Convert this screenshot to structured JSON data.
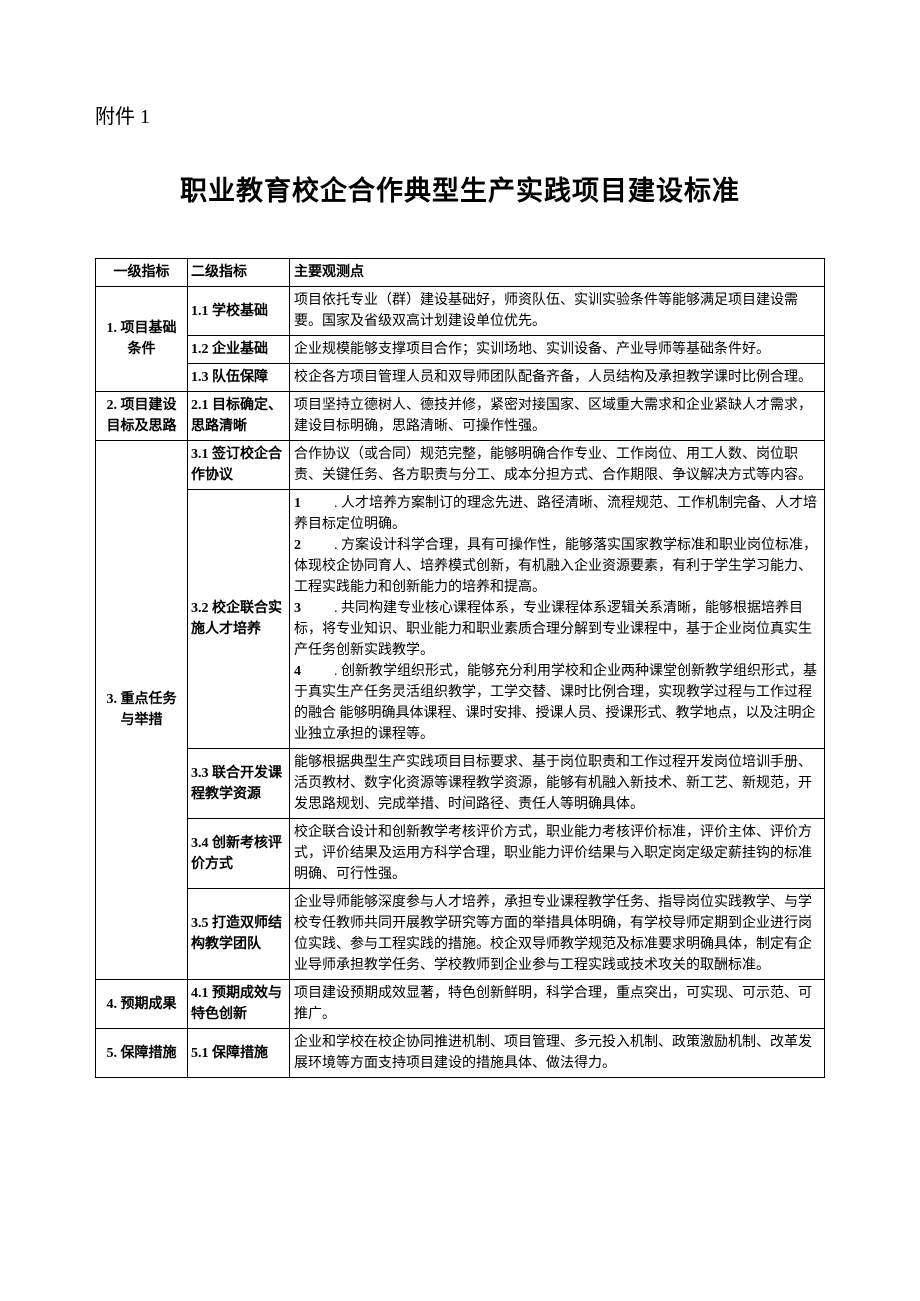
{
  "attachment_label": "附件 1",
  "title": "职业教育校企合作典型生产实践项目建设标准",
  "headers": {
    "col1": "一级指标",
    "col2": "二级指标",
    "col3": "主要观测点"
  },
  "rows": [
    {
      "l1": "1. 项目基础条件",
      "l1_rowspan": 3,
      "l2": "1.1 学校基础",
      "l3": "项目依托专业（群）建设基础好，师资队伍、实训实验条件等能够满足项目建设需要。国家及省级双高计划建设单位优先。"
    },
    {
      "l2": "1.2 企业基础",
      "l3": "企业规模能够支撑项目合作；实训场地、实训设备、产业导师等基础条件好。"
    },
    {
      "l2": "1.3 队伍保障",
      "l3": "校企各方项目管理人员和双导师团队配备齐备，人员结构及承担教学课时比例合理。"
    },
    {
      "l1": "2. 项目建设目标及思路",
      "l1_rowspan": 1,
      "l2": "2.1 目标确定、思路清晰",
      "l3": "项目坚持立德树人、德技并修，紧密对接国家、区域重大需求和企业紧缺人才需求，建设目标明确，思路清晰、可操作性强。"
    },
    {
      "l1": "3. 重点任务与举措",
      "l1_rowspan": 5,
      "l2": "3.1 签订校企合作协议",
      "l3": "合作协议（或合同）规范完整，能够明确合作专业、工作岗位、用工人数、岗位职责、关键任务、各方职责与分工、成本分担方式、合作期限、争议解决方式等内容。"
    },
    {
      "l2": "3.2 校企联合实施人才培养",
      "l3_list": [
        ". 人才培养方案制订的理念先进、路径清晰、流程规范、工作机制完备、人才培养目标定位明确。",
        ". 方案设计科学合理，具有可操作性，能够落实国家教学标准和职业岗位标准，体现校企协同育人、培养模式创新，有机融入企业资源要素，有利于学生学习能力、工程实践能力和创新能力的培养和提高。",
        ". 共同构建专业核心课程体系，专业课程体系逻辑关系清晰，能够根据培养目标，将专业知识、职业能力和职业素质合理分解到专业课程中，基于企业岗位真实生产任务创新实践教学。",
        ". 创新教学组织形式，能够充分利用学校和企业两种课堂创新教学组织形式，基于真实生产任务灵活组织教学，工学交替、课时比例合理，实现教学过程与工作过程的融合 能够明确具体课程、课时安排、授课人员、授课形式、教学地点，以及注明企业独立承担的课程等。"
      ]
    },
    {
      "l2": "3.3 联合开发课程教学资源",
      "l3": "能够根据典型生产实践项目目标要求、基于岗位职责和工作过程开发岗位培训手册、活页教材、数字化资源等课程教学资源，能够有机融入新技术、新工艺、新规范，开发思路规划、完成举措、时间路径、责任人等明确具体。"
    },
    {
      "l2": "3.4 创新考核评价方式",
      "l3": "校企联合设计和创新教学考核评价方式，职业能力考核评价标准，评价主体、评价方式，评价结果及运用方科学合理，职业能力评价结果与入职定岗定级定薪挂钩的标准明确、可行性强。"
    },
    {
      "l2": "3.5 打造双师结构教学团队",
      "l3": "企业导师能够深度参与人才培养，承担专业课程教学任务、指导岗位实践教学、与学校专任教师共同开展教学研究等方面的举措具体明确，有学校导师定期到企业进行岗位实践、参与工程实践的措施。校企双导师教学规范及标准要求明确具体，制定有企业导师承担教学任务、学校教师到企业参与工程实践或技术攻关的取酬标准。"
    },
    {
      "l1": "4. 预期成果",
      "l1_rowspan": 1,
      "l2": "4.1 预期成效与特色创新",
      "l3": "项目建设预期成效显著，特色创新鲜明，科学合理，重点突出，可实现、可示范、可推广。"
    },
    {
      "l1": "5. 保障措施",
      "l1_rowspan": 1,
      "l2": "5.1 保障措施",
      "l3": "企业和学校在校企协同推进机制、项目管理、多元投入机制、政策激励机制、改革发展环境等方面支持项目建设的措施具体、做法得力。"
    }
  ]
}
